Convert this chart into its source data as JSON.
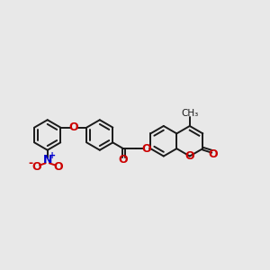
{
  "bg_color": "#e8e8e8",
  "bond_color": "#1a1a1a",
  "oxygen_color": "#cc0000",
  "nitrogen_color": "#0000cc",
  "bond_width": 1.4,
  "fig_size": [
    3.0,
    3.0
  ],
  "dpi": 100,
  "xlim": [
    -0.5,
    10.5
  ],
  "ylim": [
    1.5,
    8.5
  ]
}
